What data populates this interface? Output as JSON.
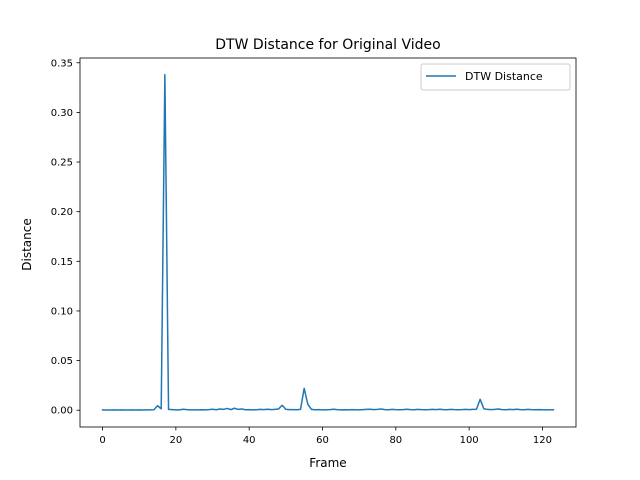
{
  "chart_data": {
    "type": "line",
    "title": "DTW Distance for Original Video",
    "xlabel": "Frame",
    "ylabel": "Distance",
    "xlim": [
      -6.15,
      129.15
    ],
    "ylim": [
      -0.0169,
      0.3548
    ],
    "xticks": [
      0,
      20,
      40,
      60,
      80,
      100,
      120
    ],
    "yticks": [
      0.0,
      0.05,
      0.1,
      0.15,
      0.2,
      0.25,
      0.3,
      0.35
    ],
    "ytick_labels": [
      "0.00",
      "0.05",
      "0.10",
      "0.15",
      "0.20",
      "0.25",
      "0.30",
      "0.35"
    ],
    "grid": false,
    "legend_position": "upper right",
    "colors": {
      "series": "#1f77b4"
    },
    "series": [
      {
        "name": "DTW Distance",
        "x": [
          0,
          1,
          2,
          3,
          4,
          5,
          6,
          7,
          8,
          9,
          10,
          11,
          12,
          13,
          14,
          15,
          16,
          17,
          18,
          19,
          20,
          21,
          22,
          23,
          24,
          25,
          26,
          27,
          28,
          29,
          30,
          31,
          32,
          33,
          34,
          35,
          36,
          37,
          38,
          39,
          40,
          41,
          42,
          43,
          44,
          45,
          46,
          47,
          48,
          49,
          50,
          51,
          52,
          53,
          54,
          55,
          56,
          57,
          58,
          59,
          60,
          61,
          62,
          63,
          64,
          65,
          66,
          67,
          68,
          69,
          70,
          71,
          72,
          73,
          74,
          75,
          76,
          77,
          78,
          79,
          80,
          81,
          82,
          83,
          84,
          85,
          86,
          87,
          88,
          89,
          90,
          91,
          92,
          93,
          94,
          95,
          96,
          97,
          98,
          99,
          100,
          101,
          102,
          103,
          104,
          105,
          106,
          107,
          108,
          109,
          110,
          111,
          112,
          113,
          114,
          115,
          116,
          117,
          118,
          119,
          120,
          121,
          122,
          123
        ],
        "y": [
          0.0003,
          0.0002,
          0.0002,
          0.0003,
          0.0002,
          0.0003,
          0.0002,
          0.0002,
          0.0003,
          0.0002,
          0.0003,
          0.0002,
          0.0003,
          0.0004,
          0.0005,
          0.0045,
          0.0015,
          0.338,
          0.0008,
          0.0006,
          0.0003,
          0.0004,
          0.001,
          0.0006,
          0.0004,
          0.0003,
          0.0004,
          0.0005,
          0.0003,
          0.0006,
          0.001,
          0.0005,
          0.0012,
          0.0008,
          0.0018,
          0.0006,
          0.002,
          0.0008,
          0.0012,
          0.0005,
          0.0006,
          0.0004,
          0.0005,
          0.0008,
          0.0006,
          0.001,
          0.0006,
          0.0008,
          0.0012,
          0.005,
          0.0008,
          0.0006,
          0.0006,
          0.0005,
          0.0008,
          0.022,
          0.006,
          0.0008,
          0.0005,
          0.0006,
          0.0004,
          0.0005,
          0.0006,
          0.001,
          0.0006,
          0.0004,
          0.0005,
          0.0004,
          0.0006,
          0.0005,
          0.0004,
          0.0006,
          0.0008,
          0.001,
          0.0006,
          0.0008,
          0.0012,
          0.0006,
          0.0005,
          0.0008,
          0.0006,
          0.0005,
          0.0006,
          0.001,
          0.0006,
          0.0005,
          0.0008,
          0.0006,
          0.0005,
          0.0006,
          0.0008,
          0.0006,
          0.001,
          0.0006,
          0.0005,
          0.0008,
          0.0006,
          0.0005,
          0.0006,
          0.0008,
          0.0006,
          0.0008,
          0.001,
          0.011,
          0.0015,
          0.0008,
          0.0006,
          0.0008,
          0.0012,
          0.0006,
          0.0005,
          0.0008,
          0.0006,
          0.001,
          0.0006,
          0.0005,
          0.0008,
          0.0006,
          0.0005,
          0.0006,
          0.0005,
          0.0004,
          0.0005,
          0.0005
        ]
      }
    ]
  }
}
